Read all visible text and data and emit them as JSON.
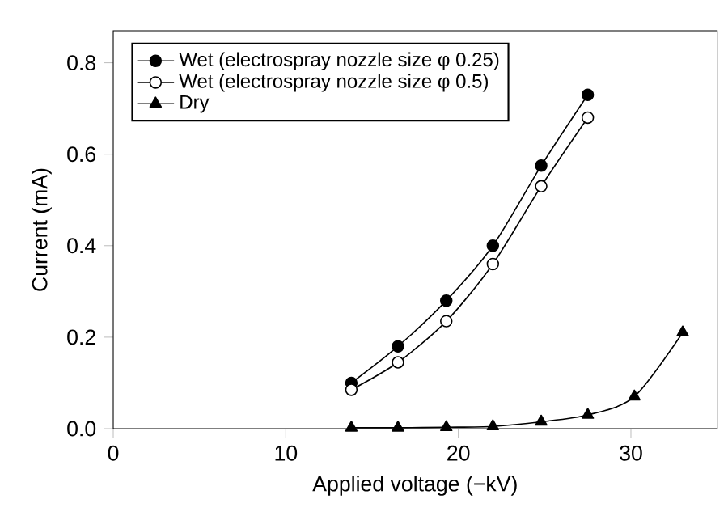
{
  "chart_data": {
    "type": "line",
    "xlabel": "Applied voltage (−kV)",
    "ylabel": "Current (mA)",
    "xlim": [
      0,
      35
    ],
    "ylim": [
      0,
      0.87
    ],
    "xticks": [
      0,
      10,
      20,
      30
    ],
    "yticks": [
      {
        "value": 0,
        "label": "0.0"
      },
      {
        "value": 0.2,
        "label": "0.2"
      },
      {
        "value": 0.4,
        "label": "0.4"
      },
      {
        "value": 0.6,
        "label": "0.6"
      },
      {
        "value": 0.8,
        "label": "0.8"
      }
    ],
    "legend": "top left",
    "grid": false,
    "series": [
      {
        "name": "Wet (electrospray nozzle size φ 0.25)",
        "color": "#000000",
        "marker": "circle",
        "x": [
          13.8,
          16.5,
          19.3,
          22,
          24.8,
          27.5
        ],
        "values": [
          0.1,
          0.18,
          0.28,
          0.4,
          0.575,
          0.73
        ]
      },
      {
        "name": "Wet (electrospray nozzle size φ 0.5)",
        "color": "#ffffff",
        "marker": "circle",
        "x": [
          13.8,
          16.5,
          19.3,
          22,
          24.8,
          27.5
        ],
        "values": [
          0.085,
          0.145,
          0.235,
          0.36,
          0.53,
          0.68
        ]
      },
      {
        "name": "Dry",
        "color": "#000000",
        "marker": "triangle",
        "x": [
          13.8,
          16.5,
          19.3,
          22,
          24.8,
          27.5,
          30.2,
          33
        ],
        "values": [
          0.002,
          0.002,
          0.003,
          0.005,
          0.015,
          0.03,
          0.07,
          0.21
        ]
      }
    ]
  }
}
